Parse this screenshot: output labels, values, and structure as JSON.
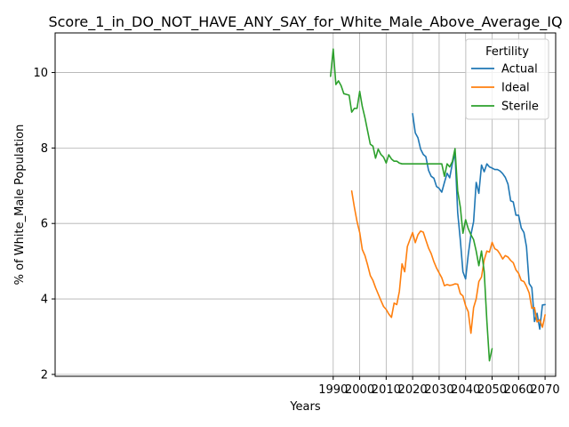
{
  "chart_data": {
    "type": "line",
    "title": "Score_1_in_DO_NOT_HAVE_ANY_SAY_for_White_Male_Above_Average_IQ",
    "xlabel": "Years",
    "ylabel": "% of White_Male Population",
    "xlim": [
      1885,
      2074
    ],
    "ylim": [
      1.95,
      11.05
    ],
    "xticks": [
      1990,
      2000,
      2010,
      2020,
      2030,
      2040,
      2050,
      2060,
      2070
    ],
    "yticks": [
      2,
      4,
      6,
      8,
      10
    ],
    "grid": true,
    "legend": {
      "title": "Fertility",
      "placement": "top-right"
    },
    "series": [
      {
        "name": "Actual",
        "color": "#1f77b4",
        "x": [
          2020,
          2021,
          2022,
          2023,
          2024,
          2025,
          2026,
          2027,
          2028,
          2029,
          2030,
          2031,
          2032,
          2033,
          2034,
          2035,
          2036,
          2037,
          2038,
          2039,
          2040,
          2041,
          2042,
          2043,
          2044,
          2045,
          2046,
          2047,
          2048,
          2049,
          2050,
          2051,
          2052,
          2053,
          2054,
          2055,
          2056,
          2057,
          2058,
          2059,
          2060,
          2061,
          2062,
          2063,
          2064,
          2065,
          2066,
          2067,
          2068,
          2069,
          2070
        ],
        "y": [
          8.91,
          8.4,
          8.27,
          7.97,
          7.83,
          7.77,
          7.41,
          7.25,
          7.2,
          6.98,
          6.93,
          6.83,
          7.09,
          7.33,
          7.21,
          7.59,
          7.86,
          6.29,
          5.55,
          4.72,
          4.53,
          5.18,
          5.7,
          6.05,
          7.09,
          6.8,
          7.55,
          7.37,
          7.58,
          7.5,
          7.47,
          7.43,
          7.43,
          7.39,
          7.32,
          7.22,
          7.04,
          6.6,
          6.57,
          6.22,
          6.22,
          5.88,
          5.76,
          5.38,
          4.41,
          4.3,
          3.4,
          3.62,
          3.2,
          3.84,
          3.85
        ]
      },
      {
        "name": "Ideal",
        "color": "#ff7f0e",
        "x": [
          1997,
          1998,
          1999,
          2000,
          2001,
          2002,
          2003,
          2004,
          2005,
          2006,
          2007,
          2008,
          2009,
          2010,
          2011,
          2012,
          2013,
          2014,
          2015,
          2016,
          2017,
          2018,
          2019,
          2020,
          2021,
          2022,
          2023,
          2024,
          2025,
          2026,
          2027,
          2028,
          2029,
          2030,
          2031,
          2032,
          2033,
          2034,
          2035,
          2036,
          2037,
          2038,
          2039,
          2040,
          2041,
          2042,
          2043,
          2044,
          2045,
          2046,
          2047,
          2048,
          2049,
          2050,
          2051,
          2052,
          2053,
          2054,
          2055,
          2056,
          2057,
          2058,
          2059,
          2060,
          2061,
          2062,
          2063,
          2064,
          2065,
          2066,
          2067,
          2068,
          2069,
          2070
        ],
        "y": [
          6.86,
          6.43,
          6.05,
          5.76,
          5.31,
          5.15,
          4.9,
          4.62,
          4.49,
          4.3,
          4.13,
          3.96,
          3.8,
          3.72,
          3.6,
          3.51,
          3.89,
          3.85,
          4.2,
          4.93,
          4.72,
          5.39,
          5.58,
          5.76,
          5.49,
          5.7,
          5.8,
          5.77,
          5.56,
          5.35,
          5.2,
          4.99,
          4.82,
          4.69,
          4.56,
          4.35,
          4.38,
          4.36,
          4.37,
          4.4,
          4.39,
          4.14,
          4.08,
          3.82,
          3.66,
          3.09,
          3.77,
          4.0,
          4.46,
          4.58,
          5.03,
          5.27,
          5.24,
          5.5,
          5.33,
          5.29,
          5.19,
          5.06,
          5.15,
          5.11,
          5.02,
          4.96,
          4.77,
          4.68,
          4.49,
          4.46,
          4.33,
          4.16,
          3.75,
          3.77,
          3.39,
          3.45,
          3.25,
          3.58
        ]
      },
      {
        "name": "Sterile",
        "color": "#2ca02c",
        "x": [
          1989,
          1990,
          1991,
          1992,
          1993,
          1994,
          1995,
          1996,
          1997,
          1998,
          1999,
          2000,
          2001,
          2002,
          2003,
          2004,
          2005,
          2006,
          2007,
          2008,
          2009,
          2010,
          2011,
          2012,
          2013,
          2014,
          2015,
          2016,
          2017,
          2018,
          2019,
          2020,
          2021,
          2022,
          2023,
          2024,
          2025,
          2026,
          2027,
          2028,
          2029,
          2030,
          2031,
          2032,
          2033,
          2034,
          2035,
          2036,
          2037,
          2038,
          2039,
          2040,
          2041,
          2042,
          2043,
          2044,
          2045,
          2046,
          2047,
          2048,
          2049,
          2050
        ],
        "y": [
          9.9,
          10.62,
          9.68,
          9.78,
          9.65,
          9.44,
          9.42,
          9.4,
          8.95,
          9.05,
          9.05,
          9.5,
          9.1,
          8.8,
          8.45,
          8.1,
          8.05,
          7.73,
          7.97,
          7.83,
          7.76,
          7.6,
          7.82,
          7.71,
          7.65,
          7.65,
          7.6,
          7.58,
          7.58,
          7.58,
          7.58,
          7.58,
          7.58,
          7.58,
          7.58,
          7.58,
          7.58,
          7.58,
          7.58,
          7.58,
          7.58,
          7.58,
          7.58,
          7.25,
          7.58,
          7.5,
          7.64,
          7.98,
          6.86,
          6.43,
          5.74,
          6.1,
          5.86,
          5.7,
          5.57,
          5.27,
          4.88,
          5.27,
          4.73,
          3.42,
          2.36,
          2.68
        ]
      }
    ]
  }
}
